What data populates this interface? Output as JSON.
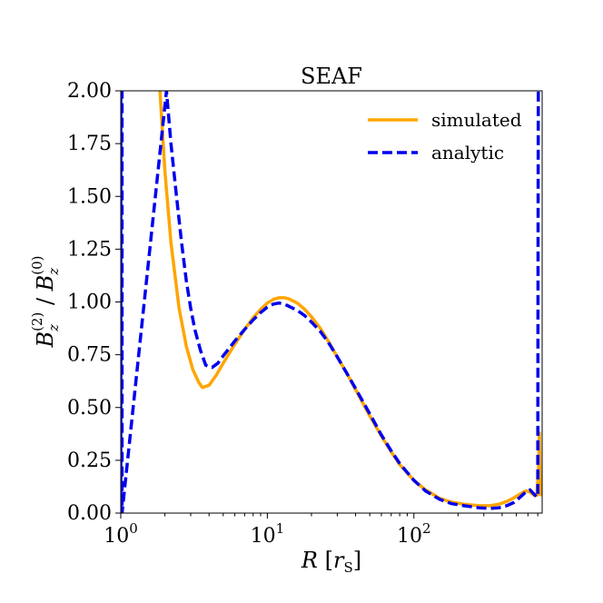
{
  "chart_data": {
    "type": "line",
    "title": "SEAF",
    "xlabel": "R [r_S]",
    "ylabel": "B_z^(2) / B_z^(0)",
    "xscale": "log",
    "xlim": [
      1,
      750
    ],
    "ylim": [
      0.0,
      2.0
    ],
    "x_ticks": [
      1,
      10,
      100
    ],
    "x_tick_labels": [
      "10^0",
      "10^1",
      "10^2"
    ],
    "y_ticks": [
      0.0,
      0.25,
      0.5,
      0.75,
      1.0,
      1.25,
      1.5,
      1.75,
      2.0
    ],
    "y_tick_labels": [
      "0.00",
      "0.25",
      "0.50",
      "0.75",
      "1.00",
      "1.25",
      "1.50",
      "1.75",
      "2.00"
    ],
    "legend_position": "top-right",
    "series": [
      {
        "name": "simulated",
        "color": "#FFA500",
        "style": "solid",
        "x": [
          1.85,
          2.0,
          2.2,
          2.5,
          2.8,
          3.1,
          3.4,
          3.6,
          4.0,
          4.5,
          5.0,
          6.0,
          7.0,
          8.0,
          9.0,
          10.0,
          11.0,
          12.0,
          13.0,
          14.0,
          16.0,
          18.0,
          20.0,
          23.0,
          26.0,
          30.0,
          35.0,
          40.0,
          50.0,
          60.0,
          70.0,
          80.0,
          100.0,
          120.0,
          150.0,
          180.0,
          220.0,
          280.0,
          330.0,
          380.0,
          430.0,
          480.0,
          530.0,
          580.0,
          620.0,
          660.0,
          690.0,
          708.0,
          718.0,
          728.0
        ],
        "y": [
          2.0,
          1.62,
          1.28,
          0.97,
          0.79,
          0.68,
          0.62,
          0.595,
          0.605,
          0.655,
          0.71,
          0.8,
          0.87,
          0.925,
          0.965,
          0.995,
          1.012,
          1.02,
          1.02,
          1.015,
          0.995,
          0.965,
          0.93,
          0.875,
          0.815,
          0.74,
          0.66,
          0.585,
          0.46,
          0.365,
          0.29,
          0.23,
          0.155,
          0.11,
          0.07,
          0.052,
          0.042,
          0.035,
          0.035,
          0.042,
          0.055,
          0.072,
          0.09,
          0.105,
          0.1,
          0.085,
          0.085,
          0.2,
          0.38,
          0.08
        ]
      },
      {
        "name": "analytic",
        "color": "#0000EE",
        "style": "dashed",
        "x": [
          1.0,
          1.0,
          1.02,
          1.02,
          2.05,
          2.2,
          2.4,
          2.6,
          2.8,
          3.0,
          3.2,
          3.5,
          3.8,
          4.2,
          4.6,
          5.0,
          6.0,
          7.0,
          8.0,
          9.0,
          10.0,
          11.0,
          12.0,
          13.0,
          14.0,
          16.0,
          18.0,
          20.0,
          23.0,
          26.0,
          30.0,
          35.0,
          40.0,
          50.0,
          60.0,
          70.0,
          80.0,
          100.0,
          120.0,
          150.0,
          180.0,
          220.0,
          280.0,
          330.0,
          380.0,
          430.0,
          480.0,
          530.0,
          580.0,
          620.0,
          660.0,
          690.0,
          700.0,
          703.0,
          706.0
        ],
        "y": [
          0.0,
          2.0,
          2.0,
          0.0,
          2.0,
          1.75,
          1.5,
          1.28,
          1.1,
          0.97,
          0.87,
          0.77,
          0.7,
          0.69,
          0.71,
          0.745,
          0.815,
          0.87,
          0.915,
          0.95,
          0.975,
          0.99,
          0.995,
          0.99,
          0.98,
          0.96,
          0.935,
          0.905,
          0.86,
          0.81,
          0.74,
          0.66,
          0.59,
          0.47,
          0.37,
          0.295,
          0.235,
          0.155,
          0.105,
          0.065,
          0.045,
          0.035,
          0.025,
          0.022,
          0.025,
          0.035,
          0.05,
          0.075,
          0.1,
          0.11,
          0.09,
          0.075,
          0.09,
          1.2,
          2.0
        ]
      }
    ]
  }
}
